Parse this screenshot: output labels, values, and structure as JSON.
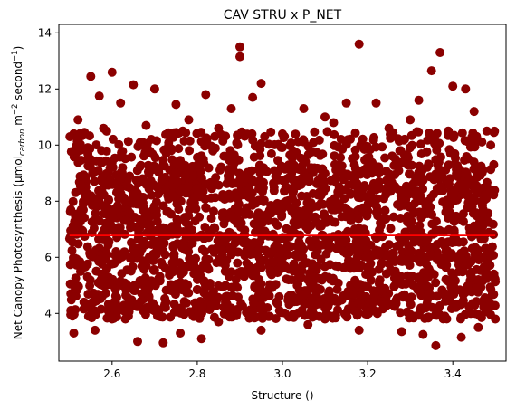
{
  "chart_data": {
    "type": "scatter",
    "title": "CAV STRU x P_NET",
    "xlabel": "Structure ()",
    "ylabel": {
      "prefix": "Net Canopy Photosynthesis (μmol",
      "sub": "carbon",
      "middle": " m",
      "sup1": "−2",
      "middle2": " second",
      "sup2": "−1",
      "suffix": ")"
    },
    "xlim": [
      2.475,
      3.525
    ],
    "ylim": [
      2.3,
      14.3
    ],
    "xticks": [
      {
        "value": 2.6,
        "label": "2.6"
      },
      {
        "value": 2.8,
        "label": "2.8"
      },
      {
        "value": 3.0,
        "label": "3.0"
      },
      {
        "value": 3.2,
        "label": "3.2"
      },
      {
        "value": 3.4,
        "label": "3.4"
      }
    ],
    "yticks": [
      {
        "value": 4,
        "label": "4"
      },
      {
        "value": 6,
        "label": "6"
      },
      {
        "value": 8,
        "label": "8"
      },
      {
        "value": 10,
        "label": "10"
      },
      {
        "value": 12,
        "label": "12"
      },
      {
        "value": 14,
        "label": "14"
      }
    ],
    "grid": false,
    "point_color": "#8b0000",
    "trend_color": "#ff0000",
    "trend_line": {
      "x": [
        2.5,
        3.5
      ],
      "y": [
        6.78,
        6.78
      ]
    },
    "series": [
      {
        "x_range": [
          2.5,
          3.5
        ],
        "dense_band": {
          "y_low": 4.4,
          "y_high": 9.3,
          "n_points": 1800
        },
        "scatter_points": [
          {
            "x": 2.6,
            "y": 12.6
          },
          {
            "x": 2.55,
            "y": 12.45
          },
          {
            "x": 2.65,
            "y": 12.15
          },
          {
            "x": 2.7,
            "y": 12.0
          },
          {
            "x": 2.57,
            "y": 11.75
          },
          {
            "x": 2.62,
            "y": 11.5
          },
          {
            "x": 2.75,
            "y": 11.45
          },
          {
            "x": 2.82,
            "y": 11.8
          },
          {
            "x": 2.9,
            "y": 13.5
          },
          {
            "x": 2.9,
            "y": 13.15
          },
          {
            "x": 2.95,
            "y": 12.2
          },
          {
            "x": 2.93,
            "y": 11.7
          },
          {
            "x": 2.88,
            "y": 11.3
          },
          {
            "x": 3.05,
            "y": 11.3
          },
          {
            "x": 3.1,
            "y": 11.0
          },
          {
            "x": 3.15,
            "y": 11.5
          },
          {
            "x": 3.18,
            "y": 13.6
          },
          {
            "x": 3.22,
            "y": 11.5
          },
          {
            "x": 3.35,
            "y": 12.65
          },
          {
            "x": 3.37,
            "y": 13.3
          },
          {
            "x": 3.4,
            "y": 12.1
          },
          {
            "x": 3.43,
            "y": 12.0
          },
          {
            "x": 3.32,
            "y": 11.6
          },
          {
            "x": 3.45,
            "y": 11.2
          },
          {
            "x": 2.52,
            "y": 10.9
          },
          {
            "x": 2.58,
            "y": 10.6
          },
          {
            "x": 2.68,
            "y": 10.7
          },
          {
            "x": 2.78,
            "y": 10.9
          },
          {
            "x": 2.85,
            "y": 10.6
          },
          {
            "x": 3.0,
            "y": 10.4
          },
          {
            "x": 3.12,
            "y": 10.8
          },
          {
            "x": 3.25,
            "y": 10.6
          },
          {
            "x": 3.3,
            "y": 10.9
          },
          {
            "x": 3.48,
            "y": 10.5
          },
          {
            "x": 2.51,
            "y": 3.3
          },
          {
            "x": 2.56,
            "y": 3.4
          },
          {
            "x": 2.66,
            "y": 3.0
          },
          {
            "x": 2.72,
            "y": 2.95
          },
          {
            "x": 2.76,
            "y": 3.3
          },
          {
            "x": 2.81,
            "y": 3.1
          },
          {
            "x": 2.95,
            "y": 3.4
          },
          {
            "x": 3.06,
            "y": 3.6
          },
          {
            "x": 3.18,
            "y": 3.4
          },
          {
            "x": 3.28,
            "y": 3.35
          },
          {
            "x": 3.33,
            "y": 3.25
          },
          {
            "x": 3.36,
            "y": 2.85
          },
          {
            "x": 3.42,
            "y": 3.15
          },
          {
            "x": 3.46,
            "y": 3.5
          },
          {
            "x": 3.5,
            "y": 3.8
          },
          {
            "x": 2.6,
            "y": 3.8
          },
          {
            "x": 2.85,
            "y": 3.7
          },
          {
            "x": 3.1,
            "y": 3.8
          }
        ]
      }
    ]
  }
}
